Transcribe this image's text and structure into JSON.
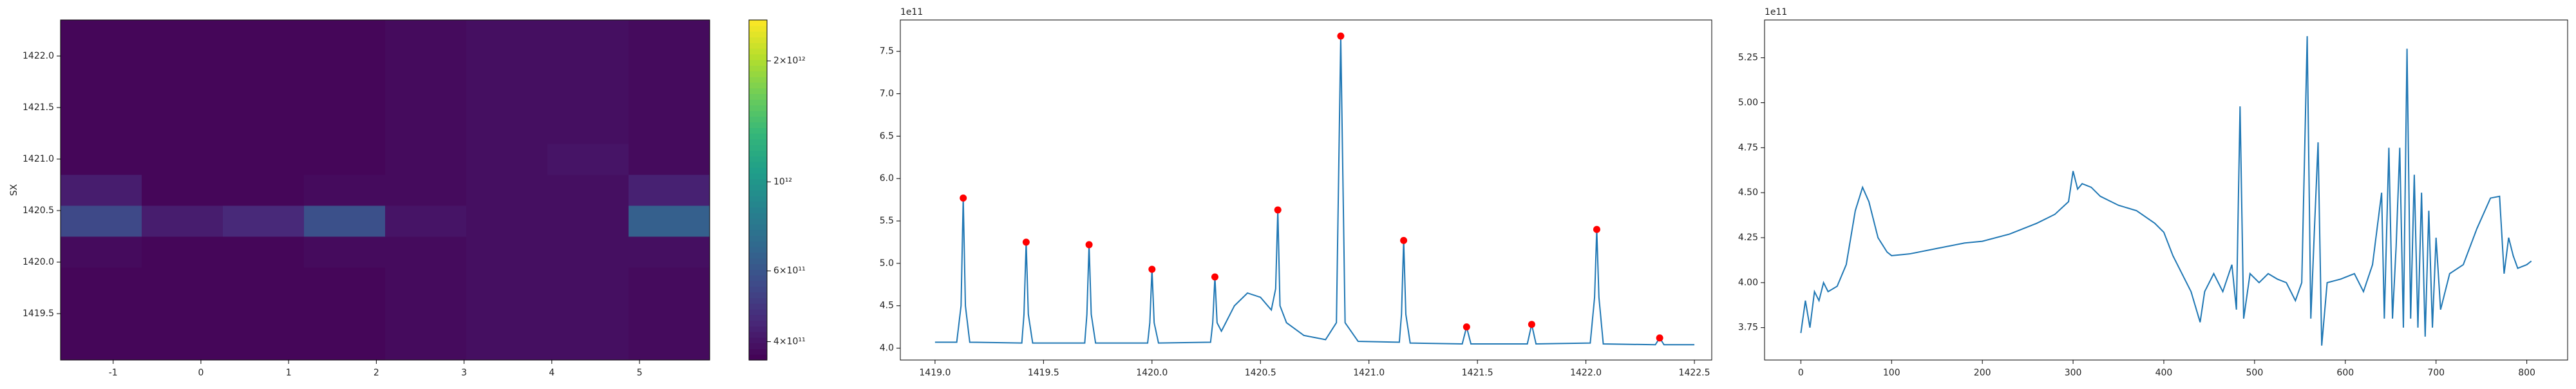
{
  "chart_data": [
    {
      "type": "heatmap",
      "ylabel": "SX",
      "colormap": "viridis",
      "log_color": true,
      "x": [
        -1.1375,
        -0.2125,
        0.7125,
        1.6375,
        2.5625,
        3.4875,
        4.4125,
        5.3375
      ],
      "y": [
        1419.2,
        1419.5,
        1419.8,
        1420.1,
        1420.4,
        1420.7,
        1421.0,
        1421.3,
        1421.6,
        1421.9,
        1422.2
      ],
      "z": [
        [
          370000000000.0,
          370000000000.0,
          370000000000.0,
          370000000000.0,
          380000000000.0,
          390000000000.0,
          390000000000.0,
          380000000000.0
        ],
        [
          370000000000.0,
          370000000000.0,
          370000000000.0,
          370000000000.0,
          380000000000.0,
          390000000000.0,
          390000000000.0,
          380000000000.0
        ],
        [
          370000000000.0,
          370000000000.0,
          370000000000.0,
          370000000000.0,
          380000000000.0,
          390000000000.0,
          390000000000.0,
          380000000000.0
        ],
        [
          380000000000.0,
          370000000000.0,
          370000000000.0,
          380000000000.0,
          380000000000.0,
          390000000000.0,
          390000000000.0,
          390000000000.0
        ],
        [
          550000000000.0,
          420000000000.0,
          450000000000.0,
          580000000000.0,
          400000000000.0,
          390000000000.0,
          390000000000.0,
          650000000000.0
        ],
        [
          420000000000.0,
          370000000000.0,
          370000000000.0,
          380000000000.0,
          380000000000.0,
          390000000000.0,
          390000000000.0,
          430000000000.0
        ],
        [
          370000000000.0,
          370000000000.0,
          370000000000.0,
          370000000000.0,
          380000000000.0,
          390000000000.0,
          400000000000.0,
          380000000000.0
        ],
        [
          370000000000.0,
          370000000000.0,
          370000000000.0,
          370000000000.0,
          380000000000.0,
          390000000000.0,
          390000000000.0,
          380000000000.0
        ],
        [
          370000000000.0,
          370000000000.0,
          370000000000.0,
          370000000000.0,
          380000000000.0,
          390000000000.0,
          390000000000.0,
          380000000000.0
        ],
        [
          370000000000.0,
          370000000000.0,
          370000000000.0,
          370000000000.0,
          380000000000.0,
          390000000000.0,
          390000000000.0,
          380000000000.0
        ],
        [
          370000000000.0,
          370000000000.0,
          370000000000.0,
          370000000000.0,
          380000000000.0,
          390000000000.0,
          390000000000.0,
          380000000000.0
        ]
      ],
      "xlim": [
        -1.6,
        5.8
      ],
      "ylim": [
        1419.05,
        1422.35
      ],
      "xticks": [
        -1,
        0,
        1,
        2,
        3,
        4,
        5
      ],
      "yticks": [
        1419.5,
        {
          "value": 1420.0,
          "label": "1420.0"
        },
        1420.5,
        {
          "value": 1421.0,
          "label": "1421.0"
        },
        1421.5,
        {
          "value": 1422.0,
          "label": "1422.0"
        }
      ],
      "clim": [
        360000000000.0,
        2530000000000.0
      ],
      "cticks": [
        {
          "value": 400000000000.0,
          "label": "4×10¹¹"
        },
        {
          "value": 600000000000.0,
          "label": "6×10¹¹"
        },
        {
          "value": 1000000000000.0,
          "label": "10¹²"
        },
        {
          "value": 2000000000000.0,
          "label": "2×10¹²"
        }
      ]
    },
    {
      "type": "line",
      "offset_label": "1e11",
      "color": "#1f77b4",
      "x": [
        1419.0,
        1419.1,
        1419.12,
        1419.13,
        1419.14,
        1419.16,
        1419.4,
        1419.41,
        1419.42,
        1419.43,
        1419.45,
        1419.69,
        1419.7,
        1419.71,
        1419.72,
        1419.74,
        1419.98,
        1419.99,
        1420.0,
        1420.01,
        1420.03,
        1420.27,
        1420.28,
        1420.29,
        1420.3,
        1420.32,
        1420.38,
        1420.44,
        1420.5,
        1420.55,
        1420.57,
        1420.58,
        1420.59,
        1420.62,
        1420.7,
        1420.8,
        1420.85,
        1420.87,
        1420.89,
        1420.95,
        1421.14,
        1421.15,
        1421.16,
        1421.17,
        1421.19,
        1421.43,
        1421.45,
        1421.47,
        1421.73,
        1421.75,
        1421.77,
        1422.02,
        1422.04,
        1422.05,
        1422.06,
        1422.08,
        1422.32,
        1422.34,
        1422.36,
        1422.5
      ],
      "values": [
        4.07,
        4.07,
        4.5,
        5.77,
        4.5,
        4.07,
        4.06,
        4.4,
        5.25,
        4.4,
        4.06,
        4.06,
        4.4,
        5.22,
        4.4,
        4.06,
        4.06,
        4.3,
        4.93,
        4.3,
        4.06,
        4.07,
        4.3,
        4.84,
        4.3,
        4.2,
        4.5,
        4.65,
        4.6,
        4.45,
        4.7,
        5.63,
        4.5,
        4.3,
        4.15,
        4.1,
        4.3,
        7.68,
        4.3,
        4.08,
        4.07,
        4.4,
        5.27,
        4.4,
        4.06,
        4.05,
        4.25,
        4.05,
        4.05,
        4.28,
        4.05,
        4.06,
        4.6,
        5.4,
        4.6,
        4.05,
        4.04,
        4.12,
        4.04,
        4.04
      ],
      "peaks": {
        "color": "red",
        "x": [
          1419.13,
          1419.42,
          1419.71,
          1420.0,
          1420.29,
          1420.58,
          1420.87,
          1421.16,
          1421.45,
          1421.75,
          1422.05,
          1422.34
        ],
        "values": [
          5.77,
          5.25,
          5.22,
          4.93,
          4.84,
          5.63,
          7.68,
          5.27,
          4.25,
          4.28,
          5.4,
          4.12
        ]
      },
      "xlim": [
        1418.84,
        1422.58
      ],
      "ylim": [
        3.86,
        7.87
      ],
      "xticks": [
        {
          "value": 1419.0,
          "label": "1419.0"
        },
        1419.5,
        {
          "value": 1420.0,
          "label": "1420.0"
        },
        1420.5,
        {
          "value": 1421.0,
          "label": "1421.0"
        },
        1421.5,
        {
          "value": 1422.0,
          "label": "1422.0"
        },
        1422.5
      ],
      "yticks": [
        {
          "value": 4.0,
          "label": "4.0"
        },
        4.5,
        {
          "value": 5.0,
          "label": "5.0"
        },
        5.5,
        {
          "value": 6.0,
          "label": "6.0"
        },
        6.5,
        {
          "value": 7.0,
          "label": "7.0"
        },
        7.5
      ]
    },
    {
      "type": "line",
      "offset_label": "1e11",
      "color": "#1f77b4",
      "x": [
        0,
        5,
        10,
        15,
        20,
        25,
        30,
        40,
        50,
        60,
        68,
        75,
        85,
        95,
        100,
        120,
        150,
        180,
        200,
        230,
        260,
        280,
        295,
        300,
        305,
        310,
        320,
        330,
        350,
        370,
        390,
        400,
        410,
        420,
        430,
        440,
        445,
        455,
        465,
        475,
        480,
        484,
        488,
        495,
        505,
        515,
        525,
        535,
        545,
        552,
        558,
        562,
        566,
        570,
        574,
        580,
        595,
        610,
        620,
        630,
        640,
        643,
        648,
        652,
        656,
        660,
        664,
        668,
        672,
        676,
        680,
        684,
        688,
        692,
        696,
        700,
        705,
        715,
        730,
        745,
        760,
        770,
        775,
        780,
        785,
        790,
        800,
        805
      ],
      "values": [
        3.72,
        3.9,
        3.75,
        3.95,
        3.9,
        4.0,
        3.95,
        3.98,
        4.1,
        4.4,
        4.53,
        4.45,
        4.25,
        4.17,
        4.15,
        4.16,
        4.19,
        4.22,
        4.23,
        4.27,
        4.33,
        4.38,
        4.45,
        4.62,
        4.52,
        4.55,
        4.53,
        4.48,
        4.43,
        4.4,
        4.33,
        4.28,
        4.15,
        4.05,
        3.95,
        3.78,
        3.95,
        4.05,
        3.95,
        4.1,
        3.85,
        4.98,
        3.8,
        4.05,
        4.0,
        4.05,
        4.02,
        4.0,
        3.9,
        4.0,
        5.37,
        3.8,
        4.3,
        4.78,
        3.65,
        4.0,
        4.02,
        4.05,
        3.95,
        4.1,
        4.5,
        3.8,
        4.75,
        3.8,
        4.2,
        4.75,
        3.75,
        5.3,
        3.8,
        4.6,
        3.75,
        4.5,
        3.7,
        4.4,
        3.75,
        4.25,
        3.85,
        4.05,
        4.1,
        4.3,
        4.47,
        4.48,
        4.05,
        4.25,
        4.15,
        4.08,
        4.1,
        4.12
      ],
      "xlim": [
        -40,
        845
      ],
      "ylim": [
        3.57,
        5.46
      ],
      "xticks": [
        0,
        100,
        200,
        300,
        400,
        500,
        600,
        700,
        800
      ],
      "yticks": [
        3.75,
        {
          "value": 4.0,
          "label": "4.00"
        },
        4.25,
        {
          "value": 4.5,
          "label": "4.50"
        },
        4.75,
        {
          "value": 5.0,
          "label": "5.00"
        },
        5.25
      ]
    }
  ]
}
